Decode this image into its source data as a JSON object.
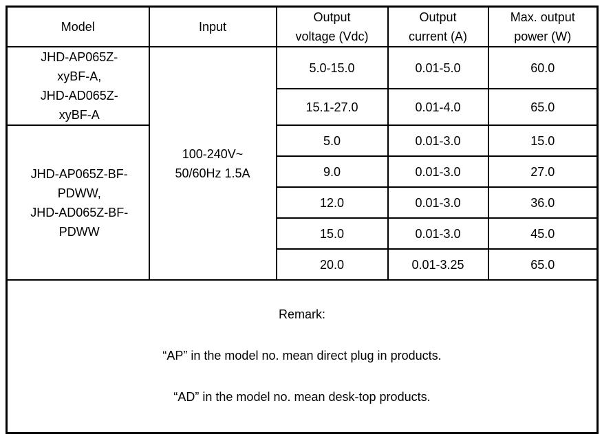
{
  "page": {
    "background": "#ffffff",
    "border_color": "#000000",
    "text_color": "#000000"
  },
  "table": {
    "headers": [
      "Model",
      "Input",
      "Output\nvoltage (Vdc)",
      "Output\ncurrent (A)",
      "Max. output\npower (W)"
    ],
    "model_groups": [
      {
        "label": "JHD-AP065Z-\nxyBF-A,\nJHD-AD065Z-\nxyBF-A",
        "row_span": 2
      },
      {
        "label": "JHD-AP065Z-BF-\nPDWW,\nJHD-AD065Z-BF-\nPDWW",
        "row_span": 5
      }
    ],
    "input_value": "100-240V~\n50/60Hz 1.5A",
    "rows": [
      {
        "voltage": "5.0-15.0",
        "current": "0.01-5.0",
        "power": "60.0"
      },
      {
        "voltage": "15.1-27.0",
        "current": "0.01-4.0",
        "power": "65.0"
      },
      {
        "voltage": "5.0",
        "current": "0.01-3.0",
        "power": "15.0"
      },
      {
        "voltage": "9.0",
        "current": "0.01-3.0",
        "power": "27.0"
      },
      {
        "voltage": "12.0",
        "current": "0.01-3.0",
        "power": "36.0"
      },
      {
        "voltage": "15.0",
        "current": "0.01-3.0",
        "power": "45.0"
      },
      {
        "voltage": "20.0",
        "current": "0.01-3.25",
        "power": "65.0"
      }
    ],
    "remark": {
      "title": "Remark:",
      "lines": [
        "“AP” in the model no. mean direct plug in products.",
        "“AD” in the model no. mean desk-top products."
      ]
    }
  }
}
